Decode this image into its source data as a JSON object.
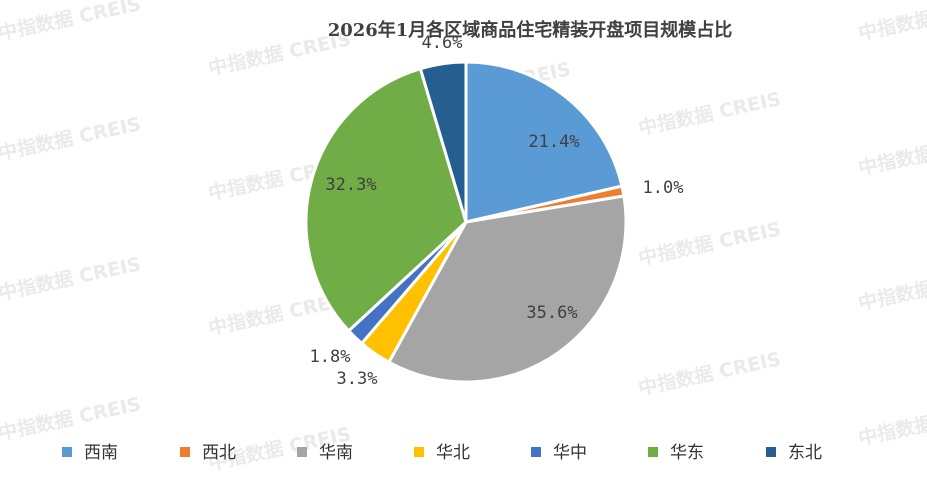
{
  "watermark": "中指数据 CREIS",
  "chart_data": {
    "type": "pie",
    "title": "2026年1月各区域商品住宅精装开盘项目规模占比",
    "start_angle_deg": 0,
    "direction": "clockwise",
    "legend_position": "bottom",
    "slices": [
      {
        "name": "西南",
        "value": 21.4,
        "label": "21.4%",
        "color": "#5B9BD5"
      },
      {
        "name": "西北",
        "value": 1.0,
        "label": "1.0%",
        "color": "#ED7D31"
      },
      {
        "name": "华南",
        "value": 35.6,
        "label": "35.6%",
        "color": "#A5A5A5"
      },
      {
        "name": "华北",
        "value": 3.3,
        "label": "3.3%",
        "color": "#FFC000"
      },
      {
        "name": "华中",
        "value": 1.8,
        "label": "1.8%",
        "color": "#4472C4"
      },
      {
        "name": "华东",
        "value": 32.3,
        "label": "32.3%",
        "color": "#70AD47"
      },
      {
        "name": "东北",
        "value": 4.6,
        "label": "4.6%",
        "color": "#255E91"
      }
    ]
  }
}
